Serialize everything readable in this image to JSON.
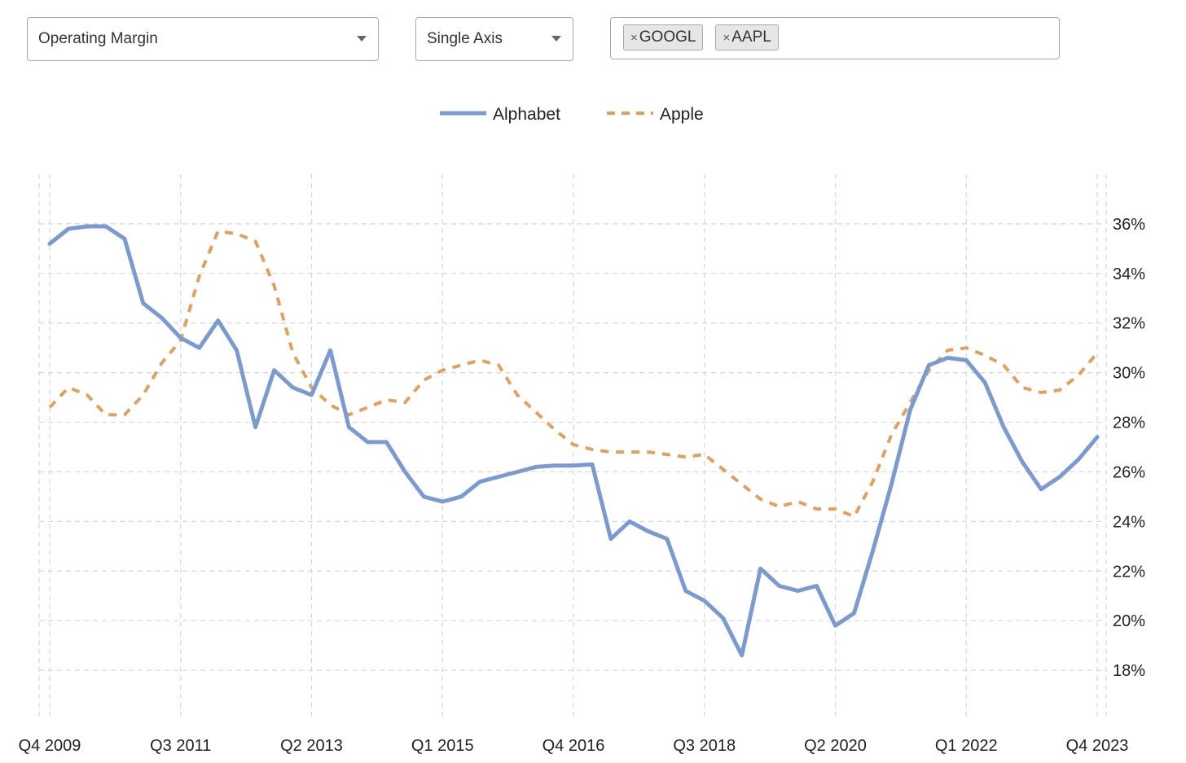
{
  "controls": {
    "metric": "Operating Margin",
    "axis_mode": "Single Axis",
    "tickers": [
      "GOOGL",
      "AAPL"
    ],
    "tag_remove_glyph": "×"
  },
  "colors": {
    "alphabet": "#7b9bd0",
    "apple": "#e0a15e",
    "grid": "#d6d6d6"
  },
  "chart_data": {
    "type": "line",
    "title": "",
    "xlabel": "",
    "ylabel": "",
    "x_ticks": [
      "Q4 2009",
      "Q3 2011",
      "Q2 2013",
      "Q1 2015",
      "Q4 2016",
      "Q3 2018",
      "Q2 2020",
      "Q1 2022",
      "Q4 2023"
    ],
    "y_ticks": [
      "18%",
      "20%",
      "22%",
      "24%",
      "26%",
      "28%",
      "30%",
      "32%",
      "34%",
      "36%"
    ],
    "ylim": [
      16,
      38
    ],
    "grid": true,
    "legend_position": "top-center",
    "y_axis_side": "right",
    "series": [
      {
        "name": "Alphabet",
        "style": "solid",
        "values": [
          35.2,
          35.8,
          35.9,
          35.9,
          35.4,
          32.8,
          32.2,
          31.4,
          31.0,
          32.1,
          30.9,
          27.8,
          30.1,
          29.4,
          29.1,
          30.9,
          27.8,
          27.2,
          27.2,
          26.0,
          25.0,
          24.8,
          25.0,
          25.6,
          25.8,
          26.0,
          26.2,
          26.25,
          26.25,
          26.3,
          23.3,
          24.0,
          23.6,
          23.3,
          21.2,
          20.8,
          20.1,
          18.6,
          22.1,
          21.4,
          21.2,
          21.4,
          19.8,
          20.3,
          22.8,
          25.5,
          28.5,
          30.3,
          30.6,
          30.5,
          29.6,
          27.8,
          26.4,
          25.3,
          25.8,
          26.5,
          27.4
        ]
      },
      {
        "name": "Apple",
        "style": "dashed",
        "values": [
          28.6,
          29.4,
          29.1,
          28.3,
          28.3,
          29.1,
          30.4,
          31.3,
          33.9,
          35.7,
          35.6,
          35.3,
          33.5,
          30.8,
          29.4,
          28.7,
          28.3,
          28.6,
          28.9,
          28.8,
          29.7,
          30.1,
          30.3,
          30.5,
          30.3,
          29.1,
          28.4,
          27.7,
          27.1,
          26.9,
          26.8,
          26.8,
          26.8,
          26.7,
          26.6,
          26.7,
          26.1,
          25.5,
          24.9,
          24.6,
          24.8,
          24.5,
          24.5,
          24.2,
          25.6,
          27.5,
          28.8,
          30.1,
          30.9,
          31.0,
          30.7,
          30.3,
          29.4,
          29.2,
          29.3,
          29.9,
          30.8
        ]
      }
    ]
  }
}
